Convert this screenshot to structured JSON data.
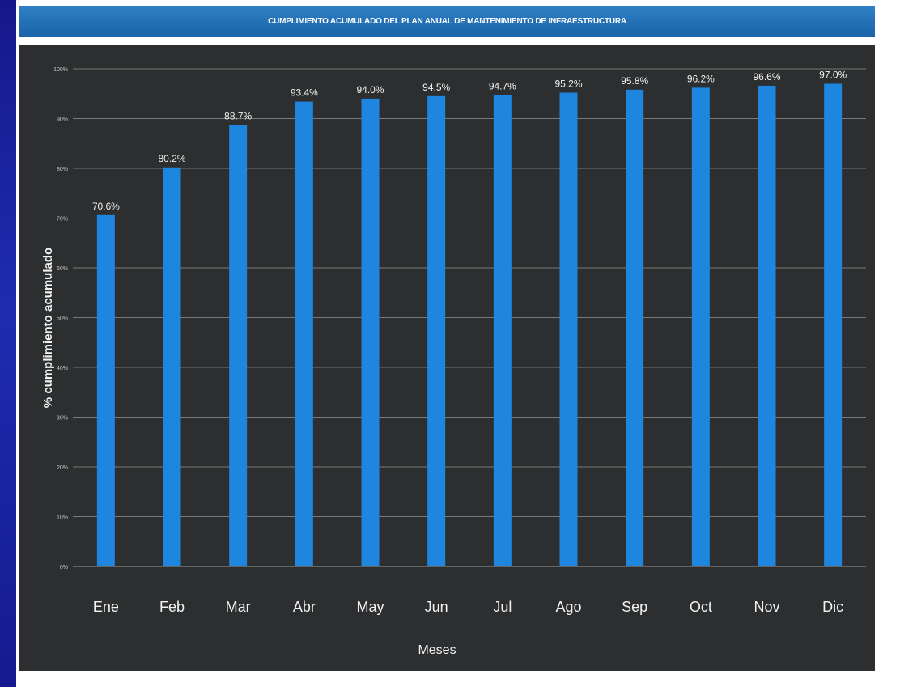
{
  "chart_data": {
    "type": "bar",
    "title": "CUMPLIMIENTO ACUMULADO DEL PLAN ANUAL DE MANTENIMIENTO DE INFRAESTRUCTURA",
    "xlabel": "Meses",
    "ylabel": "% cumplimiento acumulado",
    "ylim": [
      0,
      100
    ],
    "yticks": [
      0,
      10,
      20,
      30,
      40,
      50,
      60,
      70,
      80,
      90,
      100
    ],
    "ytick_labels": [
      "0%",
      "10%",
      "20%",
      "30%",
      "40%",
      "50%",
      "60%",
      "70%",
      "80%",
      "90%",
      "100%"
    ],
    "categories": [
      "Ene",
      "Feb",
      "Mar",
      "Abr",
      "May",
      "Jun",
      "Jul",
      "Ago",
      "Sep",
      "Oct",
      "Nov",
      "Dic"
    ],
    "values": [
      70.6,
      80.2,
      88.7,
      93.4,
      94.0,
      94.5,
      94.7,
      95.2,
      95.8,
      96.2,
      96.6,
      97.0
    ],
    "value_labels": [
      "70.6%",
      "80.2%",
      "88.7%",
      "93.4%",
      "94.0%",
      "94.5%",
      "94.7%",
      "95.2%",
      "95.8%",
      "96.2%",
      "96.6%",
      "97.0%"
    ],
    "grid": true,
    "legend": "none",
    "bar_color": "#1f86e0",
    "background_color": "#2c2e2f",
    "grid_color": "#8c8c8c"
  }
}
